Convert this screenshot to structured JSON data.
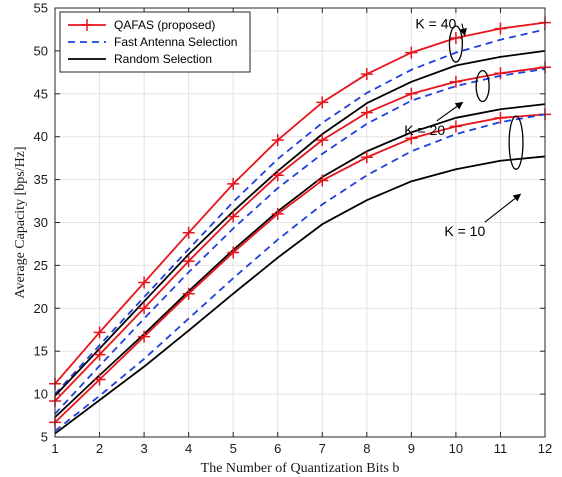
{
  "chart_data": {
    "type": "line",
    "title": "",
    "xlabel": "The Number of Quantization Bits b",
    "ylabel": "Average Capacity [bps/Hz]",
    "x": [
      1,
      2,
      3,
      4,
      5,
      6,
      7,
      8,
      9,
      10,
      11,
      12
    ],
    "xlim": [
      1,
      12
    ],
    "ylim": [
      5,
      55
    ],
    "xticks": [
      1,
      2,
      3,
      4,
      5,
      6,
      7,
      8,
      9,
      10,
      11,
      12
    ],
    "yticks": [
      5,
      10,
      15,
      20,
      25,
      30,
      35,
      40,
      45,
      50,
      55
    ],
    "grid": true,
    "legend_position": "top-left",
    "legend": [
      {
        "label": "QAFAS (proposed)",
        "color": "#e8141b",
        "style": "solid",
        "marker": "plus"
      },
      {
        "label": "Fast Antenna Selection",
        "color": "#1f3fe0",
        "style": "dashed",
        "marker": "none"
      },
      {
        "label": "Random Selection",
        "color": "#000000",
        "style": "solid",
        "marker": "none"
      }
    ],
    "series": [
      {
        "method": "QAFAS",
        "K": 40,
        "values": [
          11.2,
          17.2,
          23.0,
          28.8,
          34.5,
          39.6,
          44.0,
          47.3,
          49.8,
          51.5,
          52.6,
          53.3
        ]
      },
      {
        "method": "Fast",
        "K": 40,
        "values": [
          10.0,
          15.7,
          21.3,
          26.9,
          32.4,
          37.4,
          41.6,
          45.1,
          47.8,
          49.8,
          51.3,
          52.5
        ]
      },
      {
        "method": "Random",
        "K": 40,
        "values": [
          9.8,
          15.3,
          20.8,
          26.3,
          31.3,
          36.0,
          40.3,
          43.9,
          46.4,
          48.3,
          49.3,
          50.0
        ]
      },
      {
        "method": "QAFAS",
        "K": 20,
        "values": [
          9.2,
          14.6,
          20.0,
          25.5,
          30.7,
          35.5,
          39.6,
          42.8,
          45.0,
          46.4,
          47.4,
          48.1
        ]
      },
      {
        "method": "Fast",
        "K": 20,
        "values": [
          7.7,
          13.3,
          18.8,
          24.2,
          29.3,
          34.0,
          38.0,
          41.5,
          44.2,
          45.9,
          47.1,
          47.9
        ]
      },
      {
        "method": "Random",
        "K": 20,
        "values": [
          7.3,
          12.2,
          17.0,
          22.0,
          26.8,
          31.3,
          35.3,
          38.3,
          40.5,
          42.2,
          43.2,
          43.8
        ]
      },
      {
        "method": "QAFAS",
        "K": 10,
        "values": [
          6.7,
          11.7,
          16.7,
          21.7,
          26.5,
          31.0,
          34.9,
          37.6,
          39.8,
          41.2,
          42.2,
          42.6
        ]
      },
      {
        "method": "Fast",
        "K": 10,
        "values": [
          5.7,
          9.8,
          14.1,
          18.8,
          23.5,
          28.0,
          32.1,
          35.5,
          38.3,
          40.3,
          41.7,
          42.6
        ]
      },
      {
        "method": "Random",
        "K": 10,
        "values": [
          5.4,
          9.3,
          13.2,
          17.4,
          21.7,
          25.9,
          29.8,
          32.6,
          34.8,
          36.2,
          37.2,
          37.7
        ]
      }
    ],
    "annotations": [
      {
        "text": "K = 40",
        "label_at": [
          9.55,
          52.6
        ],
        "arrow_to": [
          10.2,
          51.8
        ],
        "ellipse_center": [
          10.0,
          50.8
        ],
        "ellipse_span_x": 0.2,
        "ellipse_span_y": 4.2
      },
      {
        "text": "K = 20",
        "label_at": [
          9.3,
          40.2
        ],
        "arrow_to": [
          10.15,
          44.0
        ],
        "ellipse_center": [
          10.6,
          45.9
        ],
        "ellipse_span_x": 0.2,
        "ellipse_span_y": 3.6
      },
      {
        "text": "K = 10",
        "label_at": [
          10.2,
          28.4
        ],
        "arrow_to": [
          11.45,
          33.3
        ],
        "ellipse_center": [
          11.35,
          39.3
        ],
        "ellipse_span_x": 0.22,
        "ellipse_span_y": 6.2
      }
    ]
  }
}
